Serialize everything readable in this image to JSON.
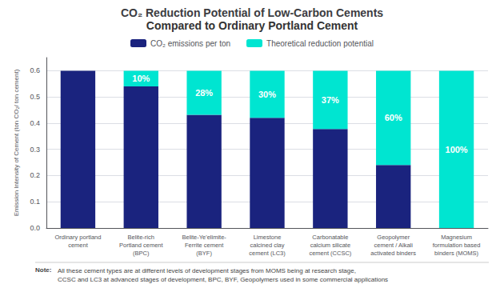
{
  "chart_data": {
    "type": "bar",
    "title": "CO₂ Reduction Potential of Low-Carbon Cements",
    "subtitle": "Compared to Ordinary Portland Cement",
    "categories": [
      "Ordinary portland\ncement",
      "Belite-rich\nPortland cement\n(BPC)",
      "Belite-Ye'elimite-\nFerrite cement\n(BYF)",
      "Limestone\ncalcined clay\ncement (LC3)",
      "Carbonatable\ncalcium silicate\ncement (CCSC)",
      "Geopolymer\ncement / Alkali\nactivated binders",
      "Magnesium\nformulation based\nbinders (MOMS)"
    ],
    "series": [
      {
        "name": "CO₂ emissions per ton",
        "color": "#1a237e",
        "values": [
          0.6,
          0.54,
          0.432,
          0.42,
          0.378,
          0.24,
          0.0
        ]
      },
      {
        "name": "Theoretical reduction potential",
        "color": "#00e5d1",
        "values": [
          0.0,
          0.06,
          0.168,
          0.18,
          0.222,
          0.36,
          0.6
        ],
        "reduction_pct": [
          0,
          10,
          28,
          30,
          37,
          60,
          100
        ],
        "reduction_labels": [
          null,
          "10%",
          "28%",
          "30%",
          "37%",
          "60%",
          "100%"
        ]
      }
    ],
    "stacked": true,
    "ylabel": "Emission Intensity of Cement (ton CO₂/ ton cement)",
    "ylim": [
      0,
      0.65
    ],
    "yticks": [
      {
        "value": 0.0,
        "label": "0.0"
      },
      0.1,
      0.2,
      0.3,
      0.4,
      0.5,
      0.6
    ],
    "grid": true,
    "legend": "top",
    "note_label": "Note:",
    "note": "All these cement types are at different levels of development stages from MOMS being at research stage,\nCCSC and LC3 at advanced stages of development, BPC, BYF, Geopolymers used in some commercial applications"
  }
}
